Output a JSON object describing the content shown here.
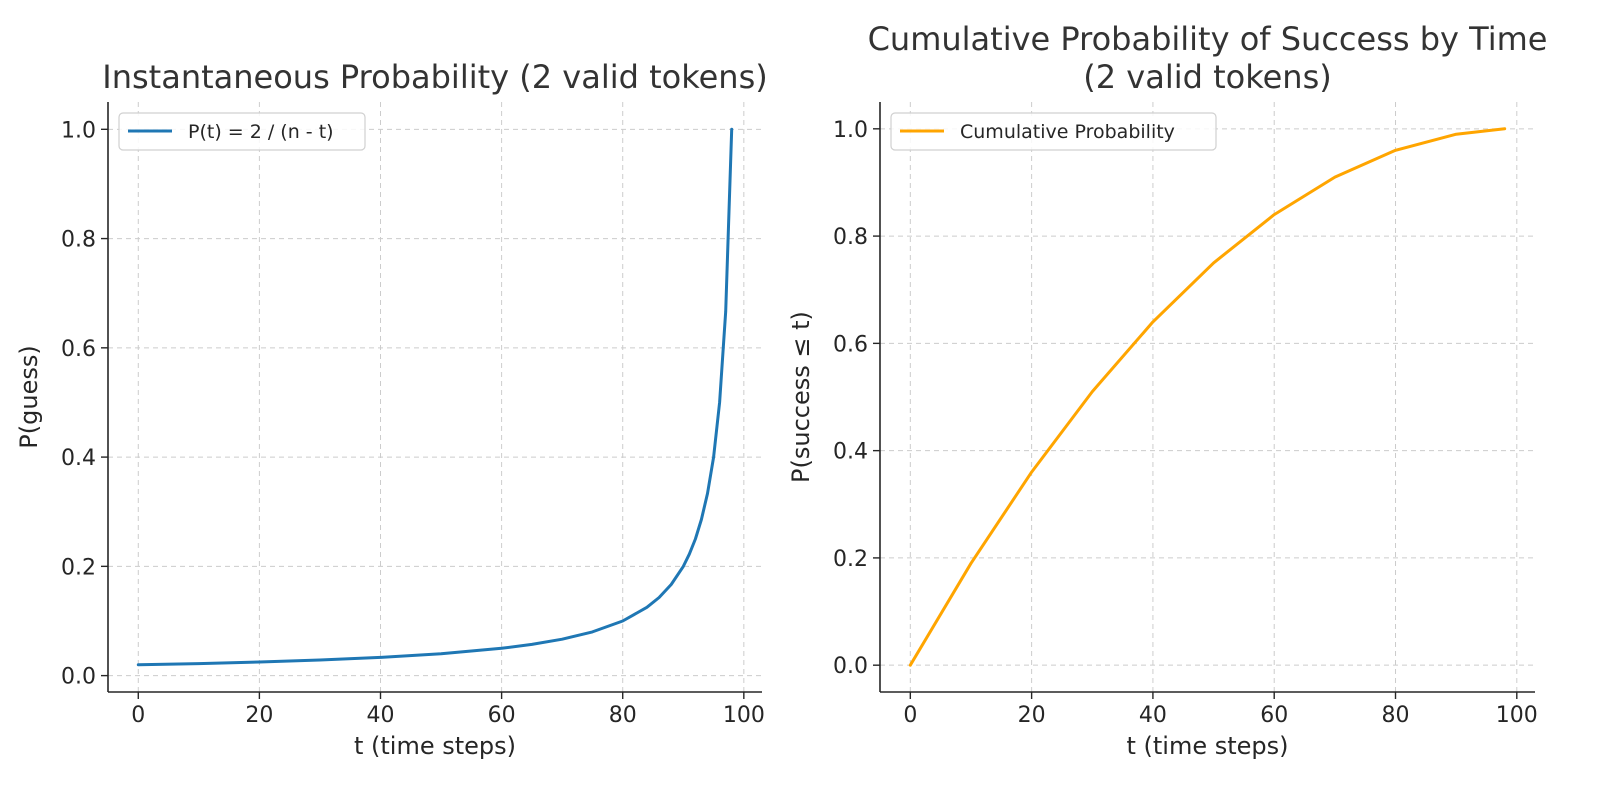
{
  "chart_data": [
    {
      "type": "line",
      "title": "Instantaneous Probability (2 valid tokens)",
      "xlabel": "t (time steps)",
      "ylabel": "P(guess)",
      "xlim": [
        -5,
        103
      ],
      "ylim": [
        -0.03,
        1.05
      ],
      "xticks": [
        "0",
        "20",
        "40",
        "60",
        "80",
        "100"
      ],
      "yticks": [
        "0.0",
        "0.2",
        "0.4",
        "0.6",
        "0.8",
        "1.0"
      ],
      "grid": true,
      "legend_position": "top-left",
      "series": [
        {
          "name": "P(t) = 2 / (n - t)",
          "color": "#1f77b4",
          "x": [
            0,
            10,
            20,
            30,
            40,
            50,
            60,
            65,
            70,
            75,
            80,
            84,
            86,
            88,
            90,
            91,
            92,
            93,
            94,
            95,
            96,
            97,
            98
          ],
          "y": [
            0.02,
            0.022,
            0.025,
            0.0286,
            0.0333,
            0.04,
            0.05,
            0.0571,
            0.0667,
            0.08,
            0.1,
            0.125,
            0.1429,
            0.1667,
            0.2,
            0.2222,
            0.25,
            0.2857,
            0.3333,
            0.4,
            0.5,
            0.6667,
            1.0
          ]
        }
      ]
    },
    {
      "type": "line",
      "title": "Cumulative Probability of Success by Time\n(2 valid tokens)",
      "xlabel": "t (time steps)",
      "ylabel": "P(success ≤ t)",
      "xlim": [
        -5,
        103
      ],
      "ylim": [
        -0.05,
        1.05
      ],
      "xticks": [
        "0",
        "20",
        "40",
        "60",
        "80",
        "100"
      ],
      "yticks": [
        "0.0",
        "0.2",
        "0.4",
        "0.6",
        "0.8",
        "1.0"
      ],
      "grid": true,
      "legend_position": "top-left",
      "series": [
        {
          "name": "Cumulative Probability",
          "color": "#ffa500",
          "x": [
            0,
            10,
            20,
            30,
            40,
            50,
            60,
            70,
            80,
            90,
            98
          ],
          "y": [
            0.0,
            0.19,
            0.36,
            0.51,
            0.64,
            0.75,
            0.84,
            0.91,
            0.96,
            0.99,
            1.0
          ]
        }
      ]
    }
  ]
}
